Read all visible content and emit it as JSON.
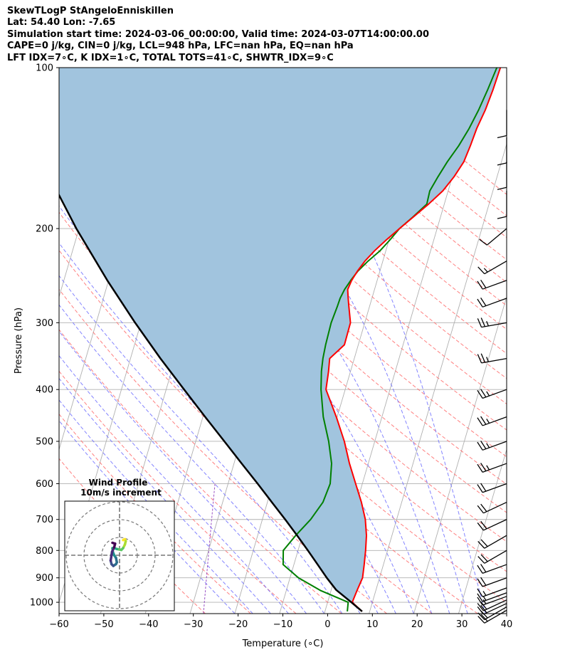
{
  "header": {
    "line1": "SkewTLogP StAngeloEnniskillen",
    "line2": "Lat: 54.40   Lon: -7.65",
    "line3": "Simulation start time: 2024-03-06_00:00:00, Valid time: 2024-03-07T14:00:00.00",
    "line4": "CAPE=0 j/kg, CIN=0 j/kg, LCL=948 hPa, LFC=nan hPa, EQ=nan hPa",
    "line5": "LFT IDX=7∘C, K IDX=1∘C, TOTAL TOTS=41∘C, SHWTR_IDX=9∘C"
  },
  "chart_data": {
    "type": "line",
    "xlabel": "Temperature (∘C)",
    "ylabel": "Pressure (hPa)",
    "xlim": [
      -60,
      40
    ],
    "ylim": [
      1050,
      100
    ],
    "y_scale": "log",
    "x_ticks": [
      -60,
      -50,
      -40,
      -30,
      -20,
      -10,
      0,
      10,
      20,
      30,
      40
    ],
    "x_tick_labels": [
      "−60",
      "−50",
      "−40",
      "−30",
      "−20",
      "−10",
      "0",
      "10",
      "20",
      "30",
      "40"
    ],
    "y_ticks": [
      100,
      200,
      300,
      400,
      500,
      600,
      700,
      800,
      900,
      1000
    ],
    "y_tick_labels": [
      "100",
      "200",
      "300",
      "400",
      "500",
      "600",
      "700",
      "800",
      "900",
      "1000"
    ],
    "grid": true,
    "colors": {
      "temperature": "#ff0000",
      "dewpoint": "#008000",
      "parcel": "#000000",
      "cape_fill": "#a1c4de",
      "isotherm": "#b0b0b0",
      "dry_adiabat": "#ff6a6a",
      "moist_adiabat": "#6f6fff",
      "mixing_ratio": "#8f3fbf",
      "barb": "#000000"
    },
    "temperature": {
      "p": [
        1040,
        1000,
        950,
        900,
        850,
        800,
        750,
        700,
        650,
        600,
        550,
        500,
        450,
        400,
        370,
        350,
        330,
        300,
        280,
        270,
        260,
        250,
        240,
        230,
        220,
        210,
        200,
        190,
        180,
        170,
        160,
        150,
        140,
        130,
        120,
        110,
        100
      ],
      "t": [
        8.3,
        5.5,
        5.8,
        6.2,
        5.7,
        5.1,
        4.3,
        3.0,
        1.0,
        -1.5,
        -4.2,
        -6.8,
        -10.2,
        -14.3,
        -14.9,
        -15.5,
        -13.1,
        -13.2,
        -14.6,
        -15.3,
        -16.0,
        -15.7,
        -15.0,
        -14.0,
        -12.5,
        -10.6,
        -8.4,
        -6.0,
        -3.5,
        -1.2,
        0.4,
        1.6,
        2.0,
        2.3,
        3.0,
        3.4,
        3.6
      ]
    },
    "dewpoint": {
      "p": [
        1040,
        1000,
        950,
        900,
        850,
        800,
        750,
        700,
        650,
        600,
        550,
        500,
        450,
        400,
        370,
        350,
        330,
        300,
        280,
        270,
        260,
        250,
        240,
        230,
        220,
        210,
        200,
        190,
        180,
        170,
        160,
        150,
        140,
        130,
        120,
        110,
        100
      ],
      "t": [
        5.0,
        4.6,
        -2.4,
        -8.1,
        -12.4,
        -13.3,
        -11.5,
        -9.2,
        -7.6,
        -7.2,
        -8.2,
        -10.3,
        -13.1,
        -15.4,
        -16.5,
        -17.0,
        -17.3,
        -17.5,
        -17.2,
        -17.1,
        -16.7,
        -15.9,
        -14.9,
        -13.3,
        -11.3,
        -9.8,
        -8.4,
        -6.1,
        -3.9,
        -4.1,
        -3.2,
        -2.1,
        -0.6,
        0.6,
        1.5,
        2.2,
        2.8
      ]
    },
    "parcel": {
      "p": [
        1040,
        1000,
        948,
        900,
        850,
        800,
        750,
        700,
        650,
        600,
        550,
        500,
        450,
        400,
        350,
        300,
        250,
        200,
        150,
        100
      ],
      "t": [
        8.3,
        5.3,
        1.1,
        -1.8,
        -4.7,
        -7.8,
        -11.2,
        -14.9,
        -19.0,
        -23.4,
        -28.3,
        -33.6,
        -39.5,
        -46.0,
        -53.3,
        -61.3,
        -70.3,
        -80.6,
        -92.7,
        -107.5
      ]
    },
    "wind_barbs": {
      "p": [
        1035,
        1020,
        1005,
        990,
        975,
        960,
        940,
        900,
        850,
        800,
        750,
        700,
        650,
        600,
        550,
        500,
        450,
        400,
        350,
        300,
        270,
        250,
        230,
        200,
        170,
        150,
        135,
        120
      ],
      "knots": [
        20,
        20,
        20,
        20,
        15,
        15,
        15,
        20,
        20,
        20,
        20,
        20,
        20,
        20,
        25,
        25,
        25,
        25,
        25,
        25,
        20,
        20,
        15,
        10,
        10,
        10,
        10,
        10
      ],
      "dir_deg": [
        240,
        240,
        245,
        245,
        250,
        250,
        250,
        250,
        250,
        240,
        240,
        245,
        245,
        250,
        250,
        250,
        250,
        250,
        260,
        260,
        250,
        250,
        240,
        230,
        180,
        180,
        180,
        180
      ]
    },
    "hodograph": {
      "title": "Wind Profile",
      "subtitle": "10m/s increment",
      "ring_step_ms": 10,
      "u": [
        2.0,
        3.0,
        3.5,
        3.0,
        2.0,
        1.0,
        -1.5,
        -3.0,
        -4.0,
        -3.8,
        -3.0,
        -2.0,
        -1.5,
        -2.0,
        -3.5,
        -4.5,
        -5.0,
        -4.2,
        -3.0,
        -2.5,
        -4.0
      ],
      "v": [
        8.5,
        9.0,
        8.0,
        6.0,
        4.0,
        3.0,
        3.5,
        4.0,
        4.0,
        2.0,
        0.0,
        -1.5,
        -4.0,
        -5.0,
        -6.0,
        -5.0,
        -3.0,
        2.0,
        4.5,
        6.5,
        7.0
      ]
    }
  }
}
